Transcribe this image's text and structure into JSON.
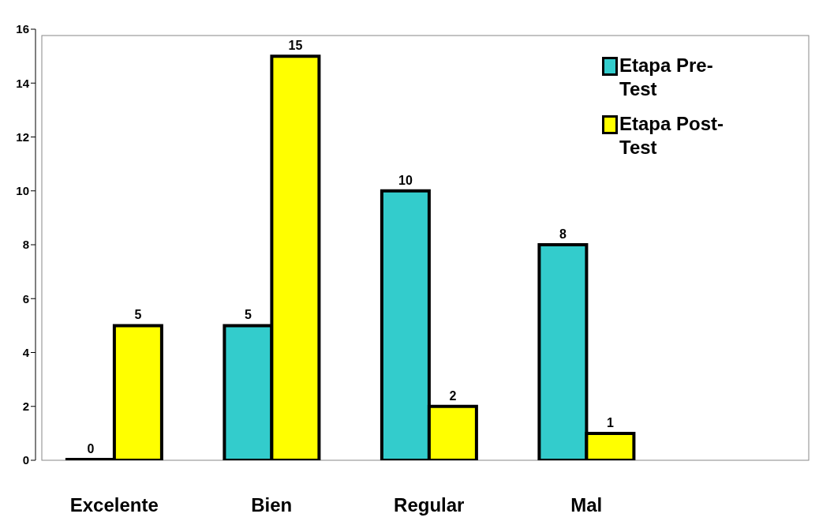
{
  "chart_data": {
    "type": "bar",
    "categories": [
      "Excelente",
      "Bien",
      "Regular",
      "Mal"
    ],
    "series": [
      {
        "name": "Etapa Pre-Test",
        "color": "#33cccc",
        "values": [
          0,
          5,
          10,
          8
        ]
      },
      {
        "name": "Etapa Post-Test",
        "color": "#ffff00",
        "values": [
          5,
          15,
          2,
          1
        ]
      }
    ],
    "ylim": [
      0,
      16
    ],
    "yticks": [
      0,
      2,
      4,
      6,
      8,
      10,
      12,
      14,
      16
    ],
    "legend": "top right",
    "data_labels": true
  }
}
